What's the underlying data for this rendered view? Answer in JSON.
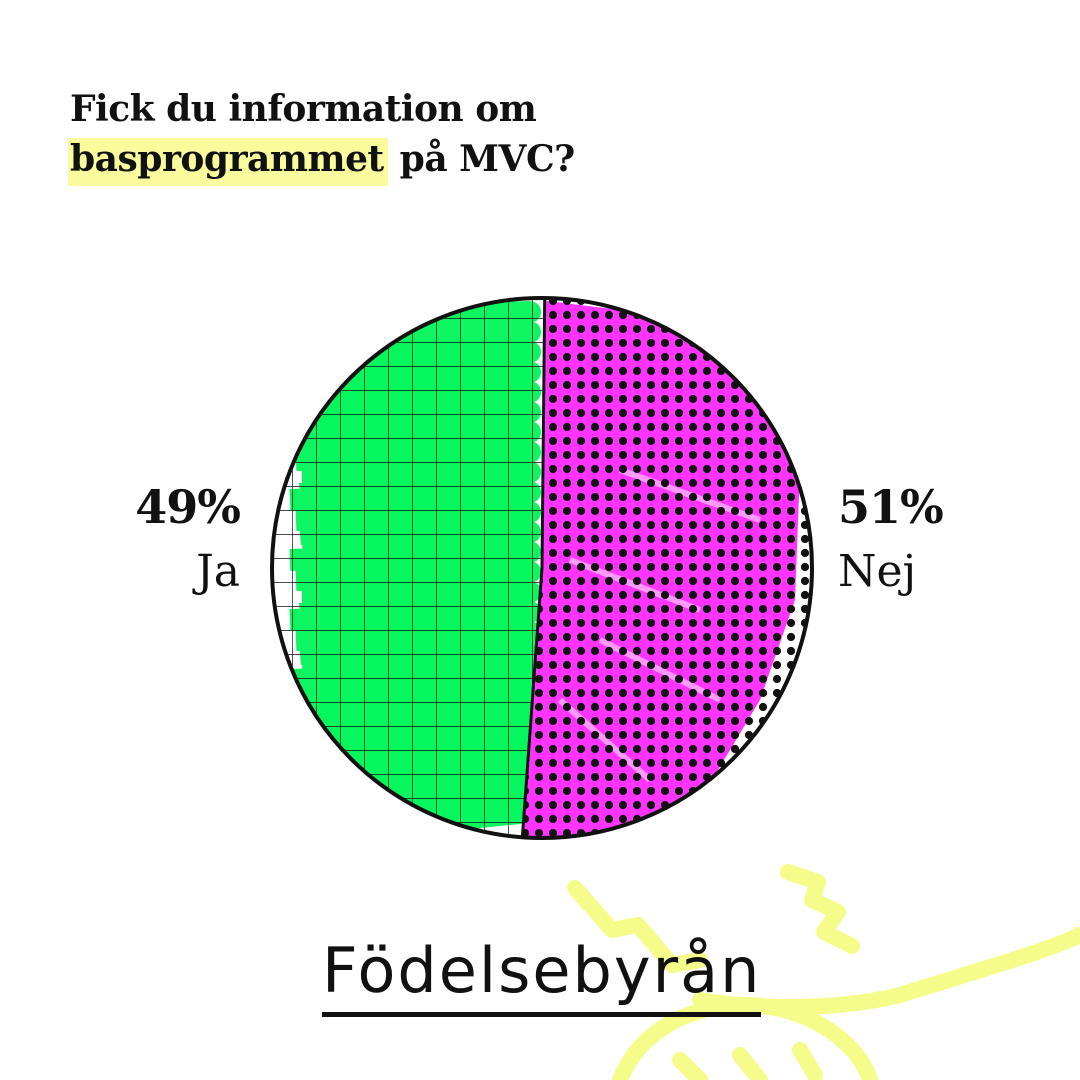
{
  "title": {
    "line1": "Fick du information om",
    "highlight": "basprogrammet",
    "rest": " på MVC?"
  },
  "chart_data": {
    "type": "pie",
    "slices": [
      {
        "label": "Ja",
        "value": 49,
        "value_label": "49%",
        "color": "#00f55a"
      },
      {
        "label": "Nej",
        "value": 51,
        "value_label": "51%",
        "color": "#ff24ff"
      }
    ]
  },
  "brand": {
    "logo": "Födelsebyrån"
  },
  "colors": {
    "highlight": "#f9fb9c",
    "sun": "#f6fc8a",
    "ink": "#111111"
  }
}
